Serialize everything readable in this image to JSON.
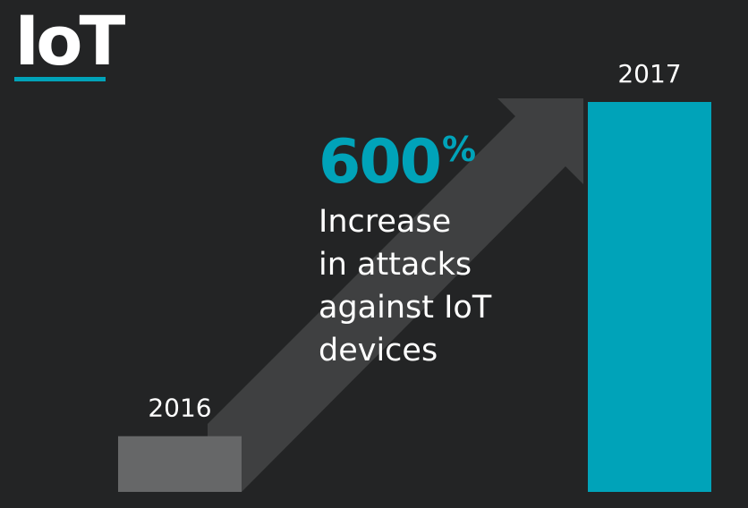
{
  "header": {
    "title": "IoT"
  },
  "stat": {
    "value": "600",
    "unit": "%",
    "caption": "Increase\nin attacks\nagainst IoT\ndevices"
  },
  "colors": {
    "background": "#232425",
    "accent": "#00a3b9",
    "bar_2016": "#666768",
    "arrow": "#3f4041",
    "text": "#ffffff"
  },
  "chart_data": {
    "type": "bar",
    "categories": [
      "2016",
      "2017"
    ],
    "values": [
      1,
      7
    ],
    "title": "",
    "xlabel": "",
    "ylabel": "",
    "ylim": [
      0,
      7
    ]
  }
}
